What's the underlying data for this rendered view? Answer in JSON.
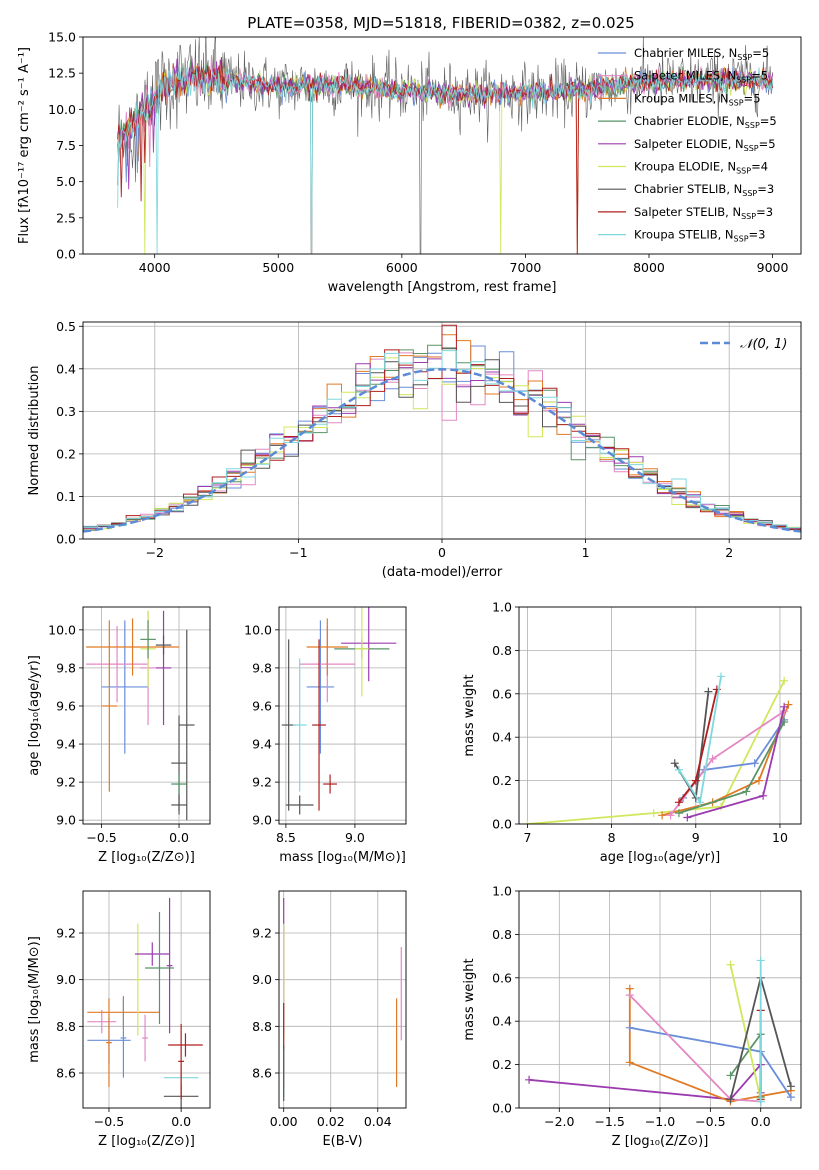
{
  "colors": [
    "#6A8ED9",
    "#E488C3",
    "#E07A25",
    "#5A9467",
    "#9B3BAF",
    "#CFE85C",
    "#555555",
    "#B01F1F",
    "#7FD8DD"
  ],
  "legend": [
    {
      "name": "Chabrier MILES",
      "nssp": "5"
    },
    {
      "name": "Salpeter MILES",
      "nssp": "5"
    },
    {
      "name": "Kroupa MILES",
      "nssp": "5"
    },
    {
      "name": "Chabrier ELODIE",
      "nssp": "5"
    },
    {
      "name": "Salpeter ELODIE",
      "nssp": "5"
    },
    {
      "name": "Kroupa ELODIE",
      "nssp": "4"
    },
    {
      "name": "Chabrier STELIB",
      "nssp": "3"
    },
    {
      "name": "Salpeter STELIB",
      "nssp": "3"
    },
    {
      "name": "Kroupa STELIB",
      "nssp": "3"
    }
  ],
  "chart_data": [
    {
      "id": "spectrum",
      "type": "line",
      "title": "PLATE=0358, MJD=51818, FIBERID=0382, z=0.025",
      "xlabel": "wavelength [Angstrom, rest frame]",
      "ylabel": "Flux [fλ10⁻¹⁷ erg cm⁻² s⁻¹ A⁻¹]",
      "xlim": [
        3420,
        9230
      ],
      "ylim": [
        0,
        15
      ],
      "xticks": [
        4000,
        5000,
        6000,
        7000,
        8000,
        9000
      ],
      "yticks": [
        0.0,
        2.5,
        5.0,
        7.5,
        10.0,
        12.5,
        15.0
      ],
      "legend_position": "top-right",
      "data_x_range": [
        3700,
        9000
      ],
      "continuum": [
        [
          3700,
          8.0
        ],
        [
          3850,
          9.2
        ],
        [
          4000,
          10.8
        ],
        [
          4100,
          11.8
        ],
        [
          4300,
          12.2
        ],
        [
          4600,
          12.0
        ],
        [
          5000,
          11.6
        ],
        [
          5500,
          11.7
        ],
        [
          6000,
          11.3
        ],
        [
          6500,
          11.1
        ],
        [
          7000,
          11.1
        ],
        [
          7400,
          11.3
        ],
        [
          7700,
          11.6
        ],
        [
          8000,
          11.9
        ],
        [
          8500,
          12.0
        ],
        [
          9000,
          12.0
        ]
      ]
    },
    {
      "id": "residuals",
      "type": "histogram",
      "xlabel": "(data-model)/error",
      "ylabel": "Normed distribution",
      "xlim": [
        -2.5,
        2.5
      ],
      "ylim": [
        0,
        0.51
      ],
      "xticks": [
        -2,
        -1,
        0,
        1,
        2
      ],
      "yticks": [
        0.0,
        0.1,
        0.2,
        0.3,
        0.4,
        0.5
      ],
      "bin_width": 0.1,
      "grid": true,
      "legend_position": "top-right",
      "reference": {
        "name": "𝒩(0, 1)",
        "mu": 0,
        "sigma": 1,
        "color": "#5B8BD6"
      }
    },
    {
      "id": "z-age",
      "type": "errorbar",
      "xlabel": "Z [log₁₀(Z/Z⊙)]",
      "ylabel": "age  [log₁₀(age/yr)]",
      "xlim": [
        -0.62,
        0.2
      ],
      "ylim": [
        8.98,
        10.12
      ],
      "xticks": [
        -0.5,
        0.0
      ],
      "yticks": [
        9.0,
        9.2,
        9.4,
        9.6,
        9.8,
        10.0
      ],
      "grid": true,
      "bars": [
        {
          "c": 0,
          "x": -0.35,
          "xerr": 0.15,
          "y": 9.7,
          "yerr": 0.35
        },
        {
          "c": 1,
          "x": -0.4,
          "xerr": 0.2,
          "y": 9.82,
          "yerr": 0.2
        },
        {
          "c": 2,
          "x": -0.3,
          "xerr": 0.3,
          "y": 9.91,
          "yerr": 0.15
        },
        {
          "c": 2,
          "x": -0.45,
          "xerr": 0.05,
          "y": 9.6,
          "yerr": 0.45
        },
        {
          "c": 4,
          "x": -0.1,
          "xerr": 0.05,
          "y": 9.8,
          "yerr": 0.3
        },
        {
          "c": 1,
          "x": -0.2,
          "xerr": 0.05,
          "y": 9.8,
          "yerr": 0.3
        },
        {
          "c": 5,
          "x": -0.2,
          "xerr": 0.05,
          "y": 9.9,
          "yerr": 0.2
        },
        {
          "c": 3,
          "x": -0.2,
          "xerr": 0.05,
          "y": 9.95,
          "yerr": 0.1
        },
        {
          "c": 6,
          "x": -0.1,
          "xerr": 0.05,
          "y": 9.92,
          "yerr": 0.05
        },
        {
          "c": 8,
          "x": 0.0,
          "xerr": 0.05,
          "y": 9.19,
          "yerr": 0.05
        },
        {
          "c": 6,
          "x": 0.0,
          "xerr": 0.05,
          "y": 9.3,
          "yerr": 0.25
        },
        {
          "c": 6,
          "x": 0.05,
          "xerr": 0.05,
          "y": 9.5,
          "yerr": 0.5
        },
        {
          "c": 6,
          "x": 0.0,
          "xerr": 0.05,
          "y": 9.08,
          "yerr": 0.05
        },
        {
          "c": 3,
          "x": 0.0,
          "xerr": 0.05,
          "y": 9.19,
          "yerr": 0.05
        }
      ]
    },
    {
      "id": "mass-age",
      "type": "errorbar",
      "xlabel": "mass [log₁₀(M/M⊙)]",
      "ylabel": "",
      "xlim": [
        8.45,
        9.37
      ],
      "ylim": [
        8.98,
        10.12
      ],
      "xticks": [
        8.5,
        9.0
      ],
      "yticks": [
        9.0,
        9.2,
        9.4,
        9.6,
        9.8,
        10.0
      ],
      "grid": true,
      "bars": [
        {
          "c": 0,
          "x": 8.75,
          "xerr": 0.1,
          "y": 9.7,
          "yerr": 0.35
        },
        {
          "c": 1,
          "x": 8.8,
          "xerr": 0.2,
          "y": 9.82,
          "yerr": 0.2
        },
        {
          "c": 2,
          "x": 8.8,
          "xerr": 0.15,
          "y": 9.91,
          "yerr": 0.15
        },
        {
          "c": 3,
          "x": 9.05,
          "xerr": 0.2,
          "y": 9.9,
          "yerr": 0.05
        },
        {
          "c": 4,
          "x": 9.1,
          "xerr": 0.2,
          "y": 9.93,
          "yerr": 0.2
        },
        {
          "c": 5,
          "x": 9.05,
          "xerr": 0.05,
          "y": 9.9,
          "yerr": 0.25
        },
        {
          "c": 6,
          "x": 8.6,
          "xerr": 0.1,
          "y": 9.08,
          "yerr": 0.05
        },
        {
          "c": 6,
          "x": 8.52,
          "xerr": 0.05,
          "y": 9.5,
          "yerr": 0.45
        },
        {
          "c": 7,
          "x": 8.82,
          "xerr": 0.05,
          "y": 9.19,
          "yerr": 0.05
        },
        {
          "c": 7,
          "x": 8.74,
          "xerr": 0.05,
          "y": 9.5,
          "yerr": 0.45
        },
        {
          "c": 8,
          "x": 8.6,
          "xerr": 0.05,
          "y": 9.5,
          "yerr": 0.35
        }
      ]
    },
    {
      "id": "age-weight",
      "type": "line",
      "xlabel": "age  [log₁₀(age/yr)]",
      "ylabel": "mass weight",
      "xlim": [
        6.9,
        10.25
      ],
      "ylim": [
        0,
        1
      ],
      "xticks": [
        7,
        8,
        9,
        10
      ],
      "yticks": [
        0.0,
        0.2,
        0.4,
        0.6,
        0.8,
        1.0
      ],
      "grid": true,
      "series": [
        {
          "c": 5,
          "points": [
            [
              7.0,
              0.0
            ],
            [
              8.5,
              0.05
            ],
            [
              9.3,
              0.08
            ],
            [
              10.05,
              0.66
            ]
          ]
        },
        {
          "c": 2,
          "points": [
            [
              8.6,
              0.04
            ],
            [
              9.2,
              0.1
            ],
            [
              9.75,
              0.2
            ],
            [
              10.1,
              0.55
            ]
          ]
        },
        {
          "c": 0,
          "points": [
            [
              8.85,
              0.12
            ],
            [
              9.1,
              0.25
            ],
            [
              9.7,
              0.28
            ],
            [
              10.05,
              0.48
            ]
          ]
        },
        {
          "c": 1,
          "points": [
            [
              8.7,
              0.04
            ],
            [
              9.2,
              0.3
            ],
            [
              10.05,
              0.52
            ]
          ]
        },
        {
          "c": 3,
          "points": [
            [
              8.8,
              0.05
            ],
            [
              9.6,
              0.15
            ],
            [
              10.05,
              0.47
            ]
          ]
        },
        {
          "c": 4,
          "points": [
            [
              8.9,
              0.03
            ],
            [
              9.8,
              0.13
            ],
            [
              10.05,
              0.54
            ]
          ]
        },
        {
          "c": 6,
          "points": [
            [
              8.75,
              0.28
            ],
            [
              9.0,
              0.12
            ],
            [
              9.15,
              0.61
            ]
          ]
        },
        {
          "c": 7,
          "points": [
            [
              8.8,
              0.1
            ],
            [
              9.0,
              0.2
            ],
            [
              9.25,
              0.62
            ]
          ]
        },
        {
          "c": 8,
          "points": [
            [
              8.8,
              0.25
            ],
            [
              9.05,
              0.1
            ],
            [
              9.3,
              0.68
            ]
          ]
        }
      ]
    },
    {
      "id": "z-mass",
      "type": "errorbar",
      "xlabel": "Z [log₁₀(Z/Z⊙)]",
      "ylabel": "mass [log₁₀(M/M⊙)]",
      "xlim": [
        -0.68,
        0.2
      ],
      "ylim": [
        8.45,
        9.38
      ],
      "xticks": [
        -0.5,
        0.0
      ],
      "yticks": [
        8.6,
        8.8,
        9.0,
        9.2
      ],
      "grid": true,
      "bars": [
        {
          "c": 0,
          "x": -0.5,
          "xerr": 0.15,
          "y": 8.74,
          "yerr": 0.1
        },
        {
          "c": 1,
          "x": -0.55,
          "xerr": 0.1,
          "y": 8.82,
          "yerr": 0.05
        },
        {
          "c": 2,
          "x": -0.4,
          "xerr": 0.25,
          "y": 8.86,
          "yerr": 0.07
        },
        {
          "c": 2,
          "x": -0.5,
          "xerr": 0.02,
          "y": 8.73,
          "yerr": 0.19
        },
        {
          "c": 0,
          "x": -0.4,
          "xerr": 0.02,
          "y": 8.75,
          "yerr": 0.17
        },
        {
          "c": 5,
          "x": -0.3,
          "xerr": 0.02,
          "y": 9.0,
          "yerr": 0.24
        },
        {
          "c": 4,
          "x": -0.2,
          "xerr": 0.12,
          "y": 9.11,
          "yerr": 0.05
        },
        {
          "c": 3,
          "x": -0.15,
          "xerr": 0.1,
          "y": 9.05,
          "yerr": 0.24
        },
        {
          "c": 4,
          "x": -0.08,
          "xerr": 0.02,
          "y": 9.06,
          "yerr": 0.29
        },
        {
          "c": 1,
          "x": -0.25,
          "xerr": 0.02,
          "y": 8.75,
          "yerr": 0.1
        },
        {
          "c": 8,
          "x": 0.0,
          "xerr": 0.12,
          "y": 8.58,
          "yerr": 0.05
        },
        {
          "c": 7,
          "x": 0.03,
          "xerr": 0.12,
          "y": 8.72,
          "yerr": 0.05
        },
        {
          "c": 6,
          "x": 0.0,
          "xerr": 0.12,
          "y": 8.5,
          "yerr": 0.05
        },
        {
          "c": 7,
          "x": 0.0,
          "xerr": 0.02,
          "y": 8.65,
          "yerr": 0.16
        }
      ]
    },
    {
      "id": "ebv-mass",
      "type": "errorbar",
      "xlabel": "E(B-V)",
      "ylabel": "",
      "xlim": [
        -0.002,
        0.052
      ],
      "ylim": [
        8.45,
        9.38
      ],
      "xticks": [
        0.0,
        0.02,
        0.04
      ],
      "yticks": [
        8.6,
        8.8,
        9.0,
        9.2
      ],
      "grid": true,
      "bars": [
        {
          "c": 4,
          "x": 0.0,
          "xerr": 0,
          "y": 9.06,
          "yerr": 0.29
        },
        {
          "c": 5,
          "x": 0.0,
          "xerr": 0,
          "y": 8.99,
          "yerr": 0.25
        },
        {
          "c": 7,
          "x": 0.0,
          "xerr": 0,
          "y": 8.72,
          "yerr": 0.18
        },
        {
          "c": 8,
          "x": 0.0,
          "xerr": 0,
          "y": 8.6,
          "yerr": 0.1
        },
        {
          "c": 6,
          "x": 0.0,
          "xerr": 0,
          "y": 8.6,
          "yerr": 0.12
        },
        {
          "c": 2,
          "x": 0.048,
          "xerr": 0,
          "y": 8.73,
          "yerr": 0.19
        },
        {
          "c": 1,
          "x": 0.05,
          "xerr": 0,
          "y": 8.94,
          "yerr": 0.2
        }
      ]
    },
    {
      "id": "z-weight",
      "type": "line",
      "xlabel": "Z [log₁₀(Z/Z⊙)]",
      "ylabel": "mass weight",
      "xlim": [
        -2.4,
        0.4
      ],
      "ylim": [
        0,
        1
      ],
      "xticks": [
        -2.0,
        -1.5,
        -1.0,
        -0.5,
        0.0
      ],
      "yticks": [
        0.0,
        0.2,
        0.4,
        0.6,
        0.8,
        1.0
      ],
      "grid": true,
      "series": [
        {
          "c": 4,
          "points": [
            [
              -2.3,
              0.13
            ],
            [
              -0.3,
              0.04
            ],
            [
              0.0,
              0.2
            ],
            [
              0.0,
              0.07
            ]
          ]
        },
        {
          "c": 2,
          "points": [
            [
              -1.3,
              0.55
            ],
            [
              -1.3,
              0.21
            ],
            [
              -0.3,
              0.03
            ],
            [
              0.3,
              0.08
            ]
          ]
        },
        {
          "c": 0,
          "points": [
            [
              -1.3,
              0.37
            ],
            [
              0.0,
              0.26
            ],
            [
              0.3,
              0.05
            ]
          ]
        },
        {
          "c": 1,
          "points": [
            [
              -1.3,
              0.52
            ],
            [
              -0.3,
              0.04
            ],
            [
              0.0,
              0.03
            ]
          ]
        },
        {
          "c": 3,
          "points": [
            [
              -0.3,
              0.15
            ],
            [
              0.0,
              0.34
            ],
            [
              0.0,
              0.05
            ]
          ]
        },
        {
          "c": 5,
          "points": [
            [
              -0.3,
              0.66
            ],
            [
              0.0,
              0.04
            ]
          ]
        },
        {
          "c": 6,
          "points": [
            [
              -0.3,
              0.04
            ],
            [
              0.0,
              0.6
            ],
            [
              0.3,
              0.1
            ]
          ]
        },
        {
          "c": 7,
          "points": [
            [
              0.0,
              0.04
            ],
            [
              0.0,
              0.45
            ]
          ]
        },
        {
          "c": 8,
          "points": [
            [
              0.0,
              0.68
            ],
            [
              0.0,
              0.03
            ]
          ]
        }
      ]
    }
  ]
}
